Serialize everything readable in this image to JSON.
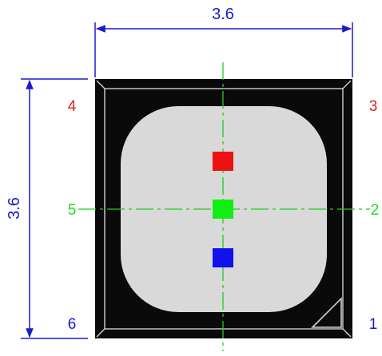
{
  "dimensions": {
    "width_label": "3.6",
    "height_label": "3.6"
  },
  "pins": [
    {
      "id": "1",
      "label": "1",
      "color": "#1a1acc"
    },
    {
      "id": "2",
      "label": "2",
      "color": "#22dd22"
    },
    {
      "id": "3",
      "label": "3",
      "color": "#e02020"
    },
    {
      "id": "4",
      "label": "4",
      "color": "#e02020"
    },
    {
      "id": "5",
      "label": "5",
      "color": "#22dd22"
    },
    {
      "id": "6",
      "label": "6",
      "color": "#1a1acc"
    }
  ],
  "dies": [
    {
      "name": "red-die",
      "color": "#ee1111"
    },
    {
      "name": "green-die",
      "color": "#11ee11"
    },
    {
      "name": "blue-die",
      "color": "#1111ee"
    }
  ],
  "colors": {
    "dimension": "#1a1acc",
    "centerline": "#22cc22",
    "package": "#0a0a0a",
    "lens": "#d9d9d9",
    "outline": "#cfcfcf"
  }
}
